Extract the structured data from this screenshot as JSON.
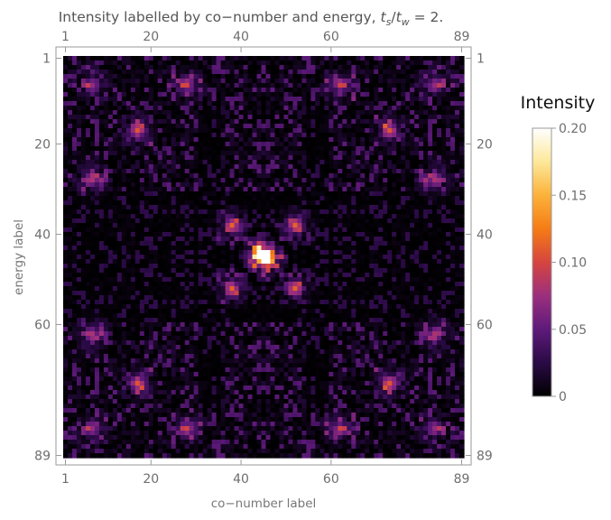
{
  "chart_data": {
    "type": "heatmap",
    "title_prefix": "Intensity labelled by co−number and energy, ",
    "title_math": {
      "t1": "t",
      "s1": "s",
      "slash": "/",
      "t2": "t",
      "s2": "w",
      "rest": " = 2."
    },
    "xlabel": "co−number label",
    "ylabel": "energy label",
    "x_ticks": [
      "1",
      "20",
      "40",
      "60",
      "89"
    ],
    "y_ticks": [
      "1",
      "20",
      "40",
      "60",
      "89"
    ],
    "x_tick_values": [
      1,
      20,
      40,
      60,
      89
    ],
    "y_tick_values": [
      1,
      20,
      40,
      60,
      89
    ],
    "x_range": [
      1,
      89
    ],
    "y_range": [
      1,
      89
    ],
    "grid_size": 89,
    "colorbar": {
      "title": "Intensity",
      "range": [
        0,
        0.2
      ],
      "ticks": [
        "0",
        "0.05",
        "0.10",
        "0.15",
        "0.20"
      ],
      "tick_values": [
        0,
        0.05,
        0.1,
        0.15,
        0.2
      ],
      "colors": [
        "#000000",
        "#2a0a45",
        "#5e1a7a",
        "#9b2f7e",
        "#d6453f",
        "#f57c15",
        "#fbb23a",
        "#fde89a",
        "#ffffff"
      ]
    },
    "hotspots": [
      {
        "x": 45,
        "y": 45,
        "value": 0.2
      },
      {
        "x": 44,
        "y": 44,
        "value": 0.12
      },
      {
        "x": 46,
        "y": 46,
        "value": 0.12
      },
      {
        "x": 38,
        "y": 38,
        "value": 0.11
      },
      {
        "x": 52,
        "y": 38,
        "value": 0.11
      },
      {
        "x": 38,
        "y": 52,
        "value": 0.11
      },
      {
        "x": 52,
        "y": 52,
        "value": 0.11
      },
      {
        "x": 17,
        "y": 17,
        "value": 0.1
      },
      {
        "x": 73,
        "y": 17,
        "value": 0.1
      },
      {
        "x": 17,
        "y": 73,
        "value": 0.1
      },
      {
        "x": 73,
        "y": 73,
        "value": 0.1
      },
      {
        "x": 7,
        "y": 28,
        "value": 0.08
      },
      {
        "x": 83,
        "y": 28,
        "value": 0.08
      },
      {
        "x": 7,
        "y": 62,
        "value": 0.08
      },
      {
        "x": 83,
        "y": 62,
        "value": 0.08
      },
      {
        "x": 28,
        "y": 7,
        "value": 0.08
      },
      {
        "x": 62,
        "y": 7,
        "value": 0.08
      },
      {
        "x": 28,
        "y": 83,
        "value": 0.08
      },
      {
        "x": 62,
        "y": 83,
        "value": 0.08
      },
      {
        "x": 7,
        "y": 7,
        "value": 0.07
      },
      {
        "x": 83,
        "y": 7,
        "value": 0.07
      },
      {
        "x": 7,
        "y": 83,
        "value": 0.07
      },
      {
        "x": 83,
        "y": 83,
        "value": 0.07
      }
    ]
  }
}
